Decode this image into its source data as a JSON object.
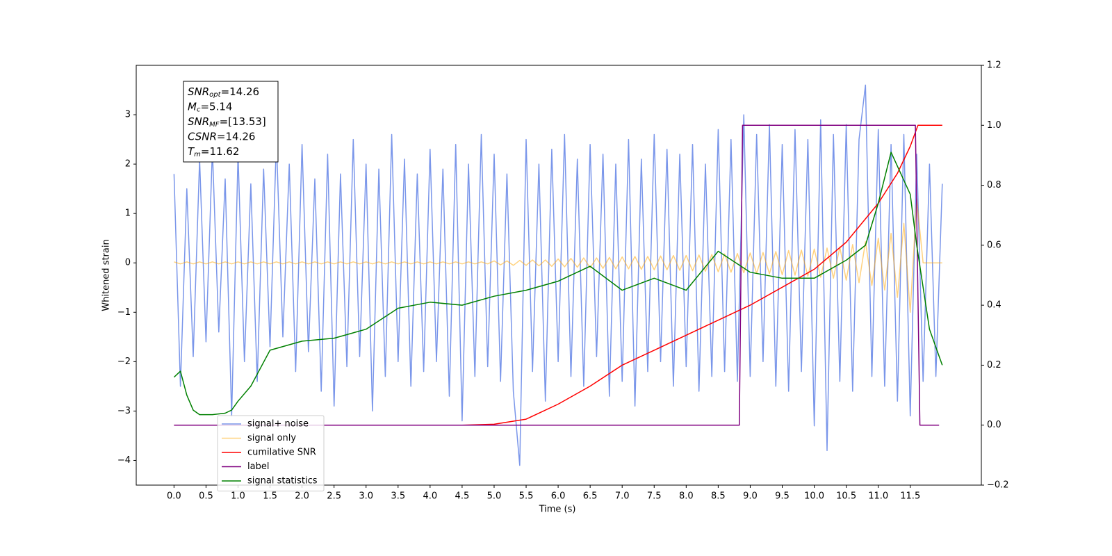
{
  "chart_data": {
    "type": "line",
    "xlabel": "Time (s)",
    "ylabel": "Whitened strain",
    "xlim": [
      -0.59,
      12.61
    ],
    "ylim": [
      -4.5,
      4.0
    ],
    "y2lim": [
      -0.2,
      1.2
    ],
    "xticks": [
      {
        "value": 0,
        "label": "0.0"
      },
      0.5,
      {
        "value": 1,
        "label": "1.0"
      },
      1.5,
      {
        "value": 2,
        "label": "2.0"
      },
      2.5,
      {
        "value": 3,
        "label": "3.0"
      },
      3.5,
      {
        "value": 4,
        "label": "4.0"
      },
      4.5,
      {
        "value": 5,
        "label": "5.0"
      },
      5.5,
      {
        "value": 6,
        "label": "6.0"
      },
      6.5,
      {
        "value": 7,
        "label": "7.0"
      },
      7.5,
      {
        "value": 8,
        "label": "8.0"
      },
      8.5,
      {
        "value": 9,
        "label": "9.0"
      },
      9.5,
      {
        "value": 10,
        "label": "10.0"
      },
      10.5,
      {
        "value": 11,
        "label": "11.0"
      },
      11.5
    ],
    "yticks": [
      {
        "value": -4,
        "label": "−4"
      },
      {
        "value": -3,
        "label": "−3"
      },
      {
        "value": -2,
        "label": "−2"
      },
      {
        "value": -1,
        "label": "−1"
      },
      0,
      1,
      2,
      3
    ],
    "y2ticks": [
      {
        "value": -0.2,
        "label": "−0.2"
      },
      {
        "value": 0,
        "label": "0.0"
      },
      0.2,
      0.4,
      0.6,
      0.8,
      {
        "value": 1,
        "label": "1.0"
      },
      1.2
    ],
    "legend": "lower left",
    "annotations": [
      {
        "symbol": "SNR",
        "subscript": "opt",
        "text": "=14.26"
      },
      {
        "symbol": "M",
        "subscript": "c",
        "text": "=5.14"
      },
      {
        "symbol": "SNR",
        "subscript": "MF",
        "text": "=[13.53]"
      },
      {
        "symbol": "CSNR",
        "text": "=14.26"
      },
      {
        "symbol": "T",
        "subscript": "m",
        "text": "=11.62"
      }
    ],
    "x": [
      0,
      0.1,
      0.2,
      0.3,
      0.4,
      0.5,
      0.6,
      0.7,
      0.8,
      0.9,
      1,
      1.1,
      1.2,
      1.3,
      1.4,
      1.5,
      1.6,
      1.7,
      1.8,
      1.9,
      2,
      2.1,
      2.2,
      2.3,
      2.4,
      2.5,
      2.6,
      2.7,
      2.8,
      2.9,
      3,
      3.1,
      3.2,
      3.3,
      3.4,
      3.5,
      3.6,
      3.7,
      3.8,
      3.9,
      4,
      4.1,
      4.2,
      4.3,
      4.4,
      4.5,
      4.6,
      4.7,
      4.8,
      4.9,
      5,
      5.1,
      5.2,
      5.3,
      5.4,
      5.5,
      5.6,
      5.7,
      5.8,
      5.9,
      6,
      6.1,
      6.2,
      6.3,
      6.4,
      6.5,
      6.6,
      6.7,
      6.8,
      6.9,
      7,
      7.1,
      7.2,
      7.3,
      7.4,
      7.5,
      7.6,
      7.7,
      7.8,
      7.9,
      8,
      8.1,
      8.2,
      8.3,
      8.4,
      8.5,
      8.6,
      8.7,
      8.8,
      8.9,
      9,
      9.1,
      9.2,
      9.3,
      9.4,
      9.5,
      9.6,
      9.7,
      9.8,
      9.9,
      10,
      10.1,
      10.2,
      10.3,
      10.4,
      10.5,
      10.6,
      10.7,
      10.8,
      10.9,
      11,
      11.1,
      11.2,
      11.3,
      11.4,
      11.5,
      11.6,
      11.7,
      11.8,
      11.9,
      12
    ],
    "series": [
      {
        "name": "signal+ noise",
        "color": "#4169e1",
        "opacity": 0.7,
        "values": [
          1.8,
          -2.5,
          1.5,
          -1.9,
          2.1,
          -1.6,
          2.3,
          -1.4,
          1.7,
          -3.1,
          2.2,
          -2.0,
          1.6,
          -2.4,
          1.9,
          -1.7,
          2.5,
          -1.5,
          2.0,
          -2.2,
          2.4,
          -1.8,
          1.7,
          -2.6,
          2.2,
          -2.9,
          1.8,
          -2.1,
          2.5,
          -1.9,
          2.0,
          -3.0,
          1.9,
          -2.3,
          2.6,
          -2.0,
          2.1,
          -2.5,
          1.8,
          -2.2,
          2.3,
          -2.0,
          1.9,
          -2.7,
          2.4,
          -3.2,
          2.0,
          -2.3,
          2.6,
          -2.1,
          2.2,
          -2.4,
          1.8,
          -2.6,
          -4.1,
          2.5,
          -2.2,
          2.0,
          -2.8,
          2.3,
          -2.0,
          2.6,
          -2.3,
          2.1,
          -2.5,
          2.4,
          -1.9,
          2.2,
          -2.7,
          2.0,
          -2.4,
          2.5,
          -2.9,
          2.1,
          -2.2,
          2.6,
          -2.0,
          2.3,
          -2.5,
          2.2,
          -2.1,
          2.4,
          -2.6,
          2.0,
          -2.3,
          2.7,
          -2.2,
          2.5,
          -2.4,
          3.0,
          -2.3,
          2.6,
          -2.0,
          2.8,
          -2.5,
          2.4,
          -2.6,
          2.7,
          -2.2,
          2.5,
          -3.3,
          2.9,
          -3.8,
          2.6,
          -2.4,
          2.8,
          -2.6,
          2.5,
          3.6,
          -2.3,
          2.7,
          -2.5,
          2.4,
          -2.8,
          2.6,
          -3.1,
          2.2,
          -2.4,
          2.0,
          -2.3,
          1.6
        ]
      },
      {
        "name": "signal only",
        "color": "#ffa500",
        "opacity": 0.5,
        "values": [
          0.02,
          -0.02,
          0.02,
          -0.02,
          0.02,
          -0.02,
          0.02,
          -0.02,
          0.02,
          -0.02,
          0.02,
          -0.02,
          0.02,
          -0.02,
          0.02,
          -0.02,
          0.02,
          -0.02,
          0.02,
          -0.02,
          0.02,
          -0.02,
          0.02,
          -0.02,
          0.02,
          -0.02,
          0.02,
          -0.02,
          0.02,
          -0.02,
          0.02,
          -0.02,
          0.02,
          -0.02,
          0.02,
          -0.02,
          0.02,
          -0.02,
          0.02,
          -0.02,
          0.02,
          -0.02,
          0.02,
          -0.02,
          0.02,
          -0.02,
          0.02,
          -0.02,
          0.02,
          -0.02,
          0.04,
          -0.04,
          0.04,
          -0.05,
          0.05,
          -0.05,
          0.06,
          -0.06,
          0.06,
          -0.07,
          0.08,
          -0.08,
          0.09,
          -0.09,
          0.1,
          -0.1,
          0.1,
          -0.11,
          0.11,
          -0.12,
          0.12,
          -0.12,
          0.13,
          -0.13,
          0.13,
          -0.14,
          0.14,
          -0.14,
          0.15,
          -0.15,
          0.15,
          -0.16,
          0.16,
          -0.17,
          0.17,
          -0.18,
          0.18,
          -0.19,
          0.19,
          -0.2,
          0.2,
          -0.21,
          0.21,
          -0.22,
          0.23,
          -0.24,
          0.25,
          -0.25,
          0.26,
          -0.27,
          0.28,
          -0.29,
          0.3,
          -0.31,
          0.32,
          -0.35,
          0.37,
          -0.4,
          0.43,
          -0.46,
          0.5,
          -0.55,
          0.6,
          -0.7,
          0.8,
          -1.0,
          1.3,
          0,
          0,
          0,
          0
        ]
      },
      {
        "name": "cumilative SNR",
        "color": "#ff0000",
        "axis": "y2",
        "x": [
          0,
          4.5,
          5,
          5.5,
          6,
          6.5,
          7,
          7.5,
          8,
          8.5,
          9,
          9.5,
          10,
          10.5,
          11,
          11.3,
          11.5,
          11.62,
          12
        ],
        "values": [
          0,
          0,
          0.003,
          0.02,
          0.07,
          0.13,
          0.2,
          0.25,
          0.3,
          0.35,
          0.4,
          0.46,
          0.52,
          0.61,
          0.74,
          0.84,
          0.93,
          1.0,
          1.0
        ]
      },
      {
        "name": "label",
        "color": "#800080",
        "axis": "y2",
        "x": [
          0,
          8.83,
          8.88,
          11.58,
          11.65,
          11.95
        ],
        "values": [
          0,
          0,
          1,
          1,
          0,
          0
        ]
      },
      {
        "name": "signal statistics",
        "color": "#008000",
        "axis": "y2",
        "x": [
          0,
          0.1,
          0.2,
          0.3,
          0.4,
          0.6,
          0.8,
          0.9,
          1.0,
          1.2,
          1.5,
          2.0,
          2.5,
          3.0,
          3.5,
          4.0,
          4.5,
          5.0,
          5.5,
          6.0,
          6.5,
          7.0,
          7.5,
          8.0,
          8.5,
          9.0,
          9.5,
          10.0,
          10.5,
          10.8,
          11.0,
          11.2,
          11.5,
          11.6,
          11.8,
          12.0
        ],
        "values": [
          0.16,
          0.18,
          0.1,
          0.05,
          0.035,
          0.035,
          0.04,
          0.05,
          0.08,
          0.13,
          0.25,
          0.28,
          0.29,
          0.32,
          0.39,
          0.41,
          0.4,
          0.43,
          0.45,
          0.48,
          0.53,
          0.45,
          0.49,
          0.45,
          0.58,
          0.51,
          0.49,
          0.49,
          0.55,
          0.6,
          0.74,
          0.91,
          0.77,
          0.6,
          0.32,
          0.2
        ]
      }
    ]
  }
}
